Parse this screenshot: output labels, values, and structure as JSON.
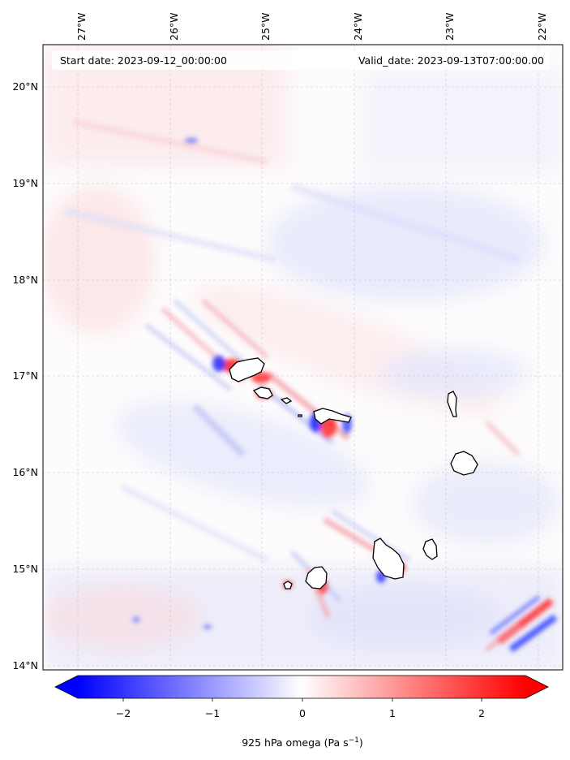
{
  "map": {
    "start_date": "Start date: 2023-09-12_00:00:00",
    "valid_date": "Valid_date: 2023-09-13T07:00:00.00",
    "lon_ticks": [
      {
        "value": -27,
        "label": "27°W"
      },
      {
        "value": -26,
        "label": "26°W"
      },
      {
        "value": -25,
        "label": "25°W"
      },
      {
        "value": -24,
        "label": "24°W"
      },
      {
        "value": -23,
        "label": "23°W"
      },
      {
        "value": -22,
        "label": "22°W"
      }
    ],
    "lat_ticks": [
      {
        "value": 20,
        "label": "20°N"
      },
      {
        "value": 19,
        "label": "19°N"
      },
      {
        "value": 18,
        "label": "18°N"
      },
      {
        "value": 17,
        "label": "17°N"
      },
      {
        "value": 16,
        "label": "16°N"
      },
      {
        "value": 15,
        "label": "15°N"
      },
      {
        "value": 14,
        "label": "14°N"
      }
    ],
    "extent": {
      "lon_min": -27.3,
      "lon_max": -21.8,
      "lat_min": 13.95,
      "lat_max": 20.45
    },
    "field": "925 hPa omega",
    "islands": [
      "santo-antao",
      "sao-vicente",
      "santa-luzia",
      "sao-nicolau",
      "sal",
      "boa-vista",
      "maio",
      "santiago",
      "fogo",
      "brava"
    ]
  },
  "colorbar": {
    "min": -2.6,
    "max": 2.6,
    "ticks": [
      {
        "value": -2,
        "label": "−2"
      },
      {
        "value": -1,
        "label": "−1"
      },
      {
        "value": 0,
        "label": "0"
      },
      {
        "value": 1,
        "label": "1"
      },
      {
        "value": 2,
        "label": "2"
      }
    ],
    "label_main": "925 hPa omega (Pa s",
    "label_exp": "−1",
    "label_close": ")",
    "colors": {
      "negative": "#0000ff",
      "zero": "#ffffff",
      "positive": "#ff0000"
    }
  }
}
